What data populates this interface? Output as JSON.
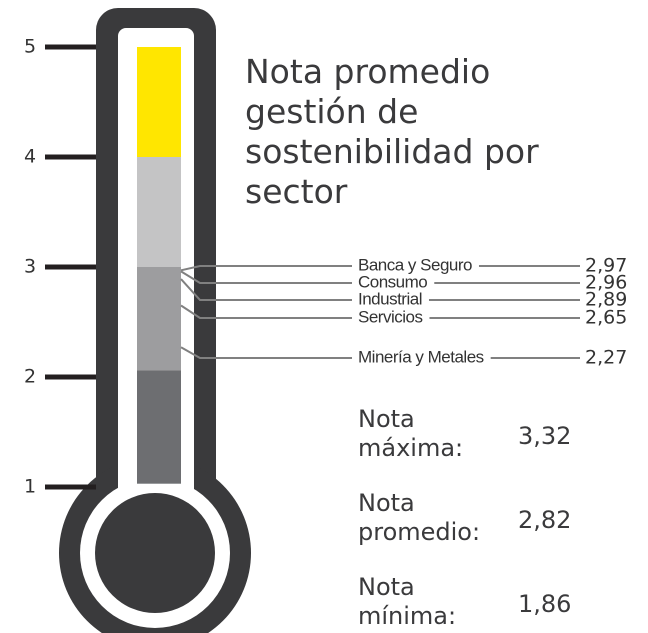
{
  "chart_data": {
    "type": "thermometer",
    "title": "Nota promedio gestión de sostenibilidad por sector",
    "ylim": [
      1,
      5
    ],
    "yticks": [
      1,
      2,
      3,
      4,
      5
    ],
    "bands": [
      {
        "from": 4,
        "to": 5,
        "color": "#ffe600"
      },
      {
        "from": 3,
        "to": 4,
        "color": "#c4c4c5"
      },
      {
        "from": 2.06,
        "to": 3,
        "color": "#9d9d9f"
      },
      {
        "from": 1.03,
        "to": 2.06,
        "color": "#6d6e71"
      }
    ],
    "categories": [
      "Banca y Seguro",
      "Consumo",
      "Industrial",
      "Servicios",
      "Minería y Metales"
    ],
    "values": [
      2.97,
      2.96,
      2.89,
      2.65,
      2.27
    ],
    "value_labels": [
      "2,97",
      "2,96",
      "2,89",
      "2,65",
      "2,27"
    ],
    "stats": [
      {
        "label": "Nota máxima:",
        "value": 3.32,
        "value_label": "3,32"
      },
      {
        "label": "Nota promedio:",
        "value": 2.82,
        "value_label": "2,82"
      },
      {
        "label": "Nota mínima:",
        "value": 1.86,
        "value_label": "1,86"
      }
    ]
  }
}
